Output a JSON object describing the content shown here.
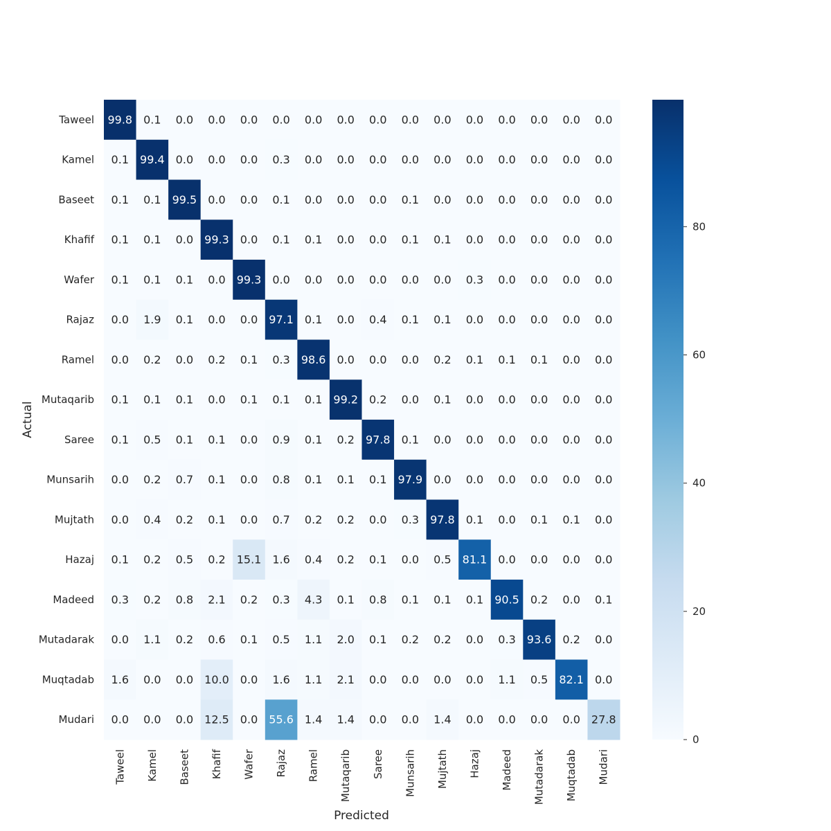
{
  "chart_data": {
    "type": "heatmap",
    "title": "",
    "xlabel": "Predicted",
    "ylabel": "Actual",
    "x_categories": [
      "Taweel",
      "Kamel",
      "Baseet",
      "Khafif",
      "Wafer",
      "Rajaz",
      "Ramel",
      "Mutaqarib",
      "Saree",
      "Munsarih",
      "Mujtath",
      "Hazaj",
      "Madeed",
      "Mutadarak",
      "Muqtadab",
      "Mudari"
    ],
    "y_categories": [
      "Taweel",
      "Kamel",
      "Baseet",
      "Khafif",
      "Wafer",
      "Rajaz",
      "Ramel",
      "Mutaqarib",
      "Saree",
      "Munsarih",
      "Mujtath",
      "Hazaj",
      "Madeed",
      "Mutadarak",
      "Muqtadab",
      "Mudari"
    ],
    "values": [
      [
        99.8,
        0.1,
        0.0,
        0.0,
        0.0,
        0.0,
        0.0,
        0.0,
        0.0,
        0.0,
        0.0,
        0.0,
        0.0,
        0.0,
        0.0,
        0.0
      ],
      [
        0.1,
        99.4,
        0.0,
        0.0,
        0.0,
        0.3,
        0.0,
        0.0,
        0.0,
        0.0,
        0.0,
        0.0,
        0.0,
        0.0,
        0.0,
        0.0
      ],
      [
        0.1,
        0.1,
        99.5,
        0.0,
        0.0,
        0.1,
        0.0,
        0.0,
        0.0,
        0.1,
        0.0,
        0.0,
        0.0,
        0.0,
        0.0,
        0.0
      ],
      [
        0.1,
        0.1,
        0.0,
        99.3,
        0.0,
        0.1,
        0.1,
        0.0,
        0.0,
        0.1,
        0.1,
        0.0,
        0.0,
        0.0,
        0.0,
        0.0
      ],
      [
        0.1,
        0.1,
        0.1,
        0.0,
        99.3,
        0.0,
        0.0,
        0.0,
        0.0,
        0.0,
        0.0,
        0.3,
        0.0,
        0.0,
        0.0,
        0.0
      ],
      [
        0.0,
        1.9,
        0.1,
        0.0,
        0.0,
        97.1,
        0.1,
        0.0,
        0.4,
        0.1,
        0.1,
        0.0,
        0.0,
        0.0,
        0.0,
        0.0
      ],
      [
        0.0,
        0.2,
        0.0,
        0.2,
        0.1,
        0.3,
        98.6,
        0.0,
        0.0,
        0.0,
        0.2,
        0.1,
        0.1,
        0.1,
        0.0,
        0.0
      ],
      [
        0.1,
        0.1,
        0.1,
        0.0,
        0.1,
        0.1,
        0.1,
        99.2,
        0.2,
        0.0,
        0.1,
        0.0,
        0.0,
        0.0,
        0.0,
        0.0
      ],
      [
        0.1,
        0.5,
        0.1,
        0.1,
        0.0,
        0.9,
        0.1,
        0.2,
        97.8,
        0.1,
        0.0,
        0.0,
        0.0,
        0.0,
        0.0,
        0.0
      ],
      [
        0.0,
        0.2,
        0.7,
        0.1,
        0.0,
        0.8,
        0.1,
        0.1,
        0.1,
        97.9,
        0.0,
        0.0,
        0.0,
        0.0,
        0.0,
        0.0
      ],
      [
        0.0,
        0.4,
        0.2,
        0.1,
        0.0,
        0.7,
        0.2,
        0.2,
        0.0,
        0.3,
        97.8,
        0.1,
        0.0,
        0.1,
        0.1,
        0.0
      ],
      [
        0.1,
        0.2,
        0.5,
        0.2,
        15.1,
        1.6,
        0.4,
        0.2,
        0.1,
        0.0,
        0.5,
        81.1,
        0.0,
        0.0,
        0.0,
        0.0
      ],
      [
        0.3,
        0.2,
        0.8,
        2.1,
        0.2,
        0.3,
        4.3,
        0.1,
        0.8,
        0.1,
        0.1,
        0.1,
        90.5,
        0.2,
        0.0,
        0.1
      ],
      [
        0.0,
        1.1,
        0.2,
        0.6,
        0.1,
        0.5,
        1.1,
        2.0,
        0.1,
        0.2,
        0.2,
        0.0,
        0.3,
        93.6,
        0.2,
        0.0
      ],
      [
        1.6,
        0.0,
        0.0,
        10.0,
        0.0,
        1.6,
        1.1,
        2.1,
        0.0,
        0.0,
        0.0,
        0.0,
        1.1,
        0.5,
        82.1,
        0.0
      ],
      [
        0.0,
        0.0,
        0.0,
        12.5,
        0.0,
        55.6,
        1.4,
        1.4,
        0.0,
        0.0,
        1.4,
        0.0,
        0.0,
        0.0,
        0.0,
        27.8
      ]
    ],
    "value_format": "0.1f",
    "colormap": "Blues",
    "vmin": 0,
    "vmax": 99.8,
    "colorbar_ticks": [
      0,
      20,
      40,
      60,
      80
    ],
    "grid": false,
    "legend": "colorbar-right"
  }
}
